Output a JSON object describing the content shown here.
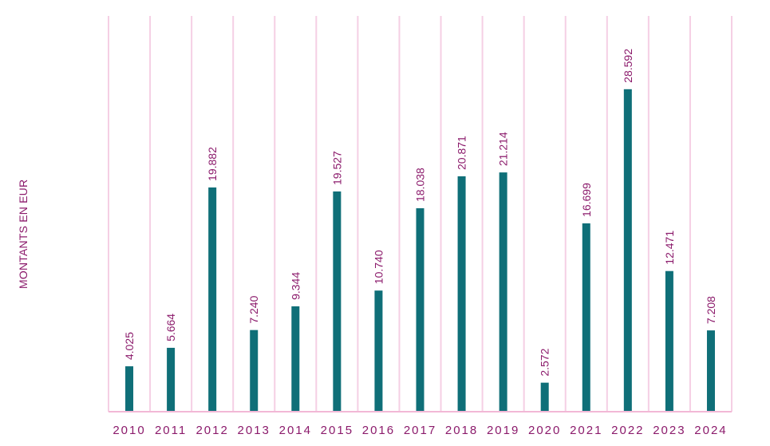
{
  "chart_data": {
    "type": "bar",
    "title": "",
    "xlabel": "",
    "ylabel": "MONTANTS EN EUR",
    "categories": [
      "2010",
      "2011",
      "2012",
      "2013",
      "2014",
      "2015",
      "2016",
      "2017",
      "2018",
      "2019",
      "2020",
      "2021",
      "2022",
      "2023",
      "2024"
    ],
    "values": [
      4025,
      5664,
      19882,
      7240,
      9344,
      19527,
      10740,
      18038,
      20871,
      21214,
      2572,
      16699,
      28592,
      12471,
      7208
    ],
    "value_labels": [
      "4.025",
      "5.664",
      "19.882",
      "7.240",
      "9.344",
      "19.527",
      "10.740",
      "18.038",
      "20.871",
      "21.214",
      "2.572",
      "16.699",
      "28.592",
      "12.471",
      "7.208"
    ],
    "ylim": [
      0,
      35000
    ],
    "grid": "vertical category separators",
    "legend": "none",
    "colors": {
      "bar": "#0f6f78",
      "text": "#8b1a6b",
      "grid": "#f5cfe4",
      "axis": "#f2b8d6"
    }
  }
}
